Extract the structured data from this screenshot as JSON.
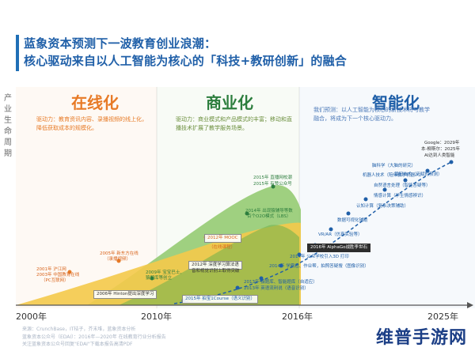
{
  "title": {
    "line1": "蓝象资本预测下一波教育创业浪潮：",
    "line2": "核心驱动来自以人工智能为核心的「科技+教研创新」的融合"
  },
  "y_axis_label": "产业生命周期",
  "phases": [
    {
      "name": "在线化",
      "desc": "驱动力：教育资讯内容、录播视频的线上化，降低获取成本的规模化。"
    },
    {
      "name": "商业化",
      "desc": "驱动力：商业模式和产品模式的丰富；移动和直播技术扩展了教学服务场景。"
    },
    {
      "name": "智能化",
      "desc": "我们预测：以人工智能为核心的新技术将与教学融合，将成为下一个核心驱动力。"
    }
  ],
  "x_ticks": [
    "2000年",
    "2010年",
    "2016年",
    "2025年"
  ],
  "annotations": {
    "online": [
      "2001年 沪江网",
      "2003年 中国教育在线",
      "（PC互联网）",
      "2005年 新东方在线",
      "（录播视频）",
      "2006年 Hinton提出深度学习"
    ],
    "commercial": [
      "2009年 宝宝巴士、",
      "猿题库等创立",
      "2012年 MOOC",
      "（在线课程）",
      "2014年 出现猿辅导等数",
      "百个O2O模式（LBS）",
      "2015年 直播网校潮",
      "2015年 有赞公众号",
      "2012年 深度学习算法语",
      "音和视觉识别上取得突破",
      "2013年 猿题库、智能题库（自适应）",
      "2013年 英语流利说（语音识别）",
      "2015年 拍宝1Course（语义识别）",
      "2014年 学霸君、作业帮，拍照答疑搜（图像识别）",
      "2014年 公众学校引入3D 打印"
    ],
    "intelligent": [
      "2016年 AlphaGo战胜李世石",
      "VR/AR（仿真实验等）",
      "数据可视化辅助",
      "认知计算（复杂决策辅助）",
      "情感计算（学生情感辨识）",
      "自然语言处理（智能答疑等）",
      "机器人技术（陪伴教学机器人）",
      "脑科学（大脑的研究）",
      "基因技术（天赋的预测）",
      "Google：2029年",
      "本-柳斯尔：2025年",
      "AI达到人类智能"
    ]
  },
  "source": [
    "来源：CrunchBase，IT桔子，芥末堆，蓝象资本分析",
    "蓝象资本公众号（EDAI）：2016年—2020年 在线教育行业分析报告",
    "关注蓝象资本公众号回复\"EDAI\"下载本报告高清PDF"
  ],
  "watermark": "维普手游网",
  "colors": {
    "online": "#f4c94a",
    "commercial": "#8fc86b",
    "intelligent": "#1f5fa8",
    "title": "#1f5fa8"
  }
}
